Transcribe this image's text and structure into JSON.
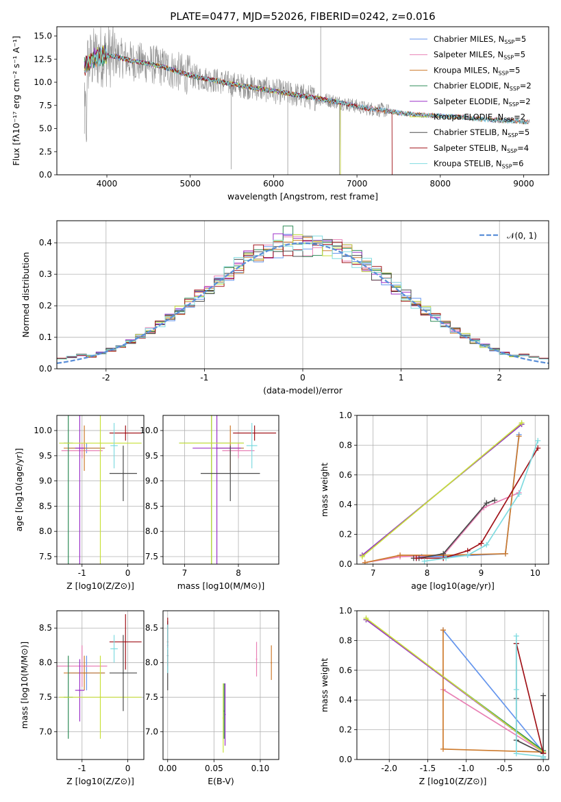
{
  "figure": {
    "title": "PLATE=0477, MJD=52026, FIBERID=0242, z=0.016"
  },
  "colors": {
    "Chabrier MILES": "#6495ed",
    "Salpeter MILES": "#e87fb4",
    "Kroupa MILES": "#cd7a2c",
    "Chabrier ELODIE": "#2e8b57",
    "Salpeter ELODIE": "#9b30c8",
    "Kroupa ELODIE": "#c8e03a",
    "Chabrier STELIB": "#4a4a4a",
    "Salpeter STELIB": "#a01218",
    "Kroupa STELIB": "#7fdbe0",
    "data": "#888888",
    "grid": "#b0b0b0",
    "gauss": "#5b8fd8"
  },
  "chart_data": [
    {
      "id": "spectrum",
      "type": "line",
      "title": "PLATE=0477, MJD=52026, FIBERID=0242, z=0.016",
      "xlabel": "wavelength [Angstrom, rest frame]",
      "ylabel": "Flux [fλ10⁻¹⁷ erg cm⁻² s⁻¹ A⁻¹]",
      "xlim": [
        3400,
        9300
      ],
      "ylim": [
        0,
        16
      ],
      "xticks": [
        4000,
        5000,
        6000,
        7000,
        8000,
        9000
      ],
      "yticks": [
        0.0,
        2.5,
        5.0,
        7.5,
        10.0,
        12.5,
        15.0
      ],
      "legend": "top-right",
      "legend_labels": [
        "Chabrier MILES, N_SSP=5",
        "Salpeter MILES, N_SSP=5",
        "Kroupa MILES, N_SSP=5",
        "Chabrier ELODIE, N_SSP=2",
        "Salpeter ELODIE, N_SSP=2",
        "Kroupa ELODIE, N_SSP=2",
        "Chabrier STELIB, N_SSP=5",
        "Salpeter STELIB, N_SSP=4",
        "Kroupa STELIB, N_SSP=6"
      ],
      "continuum": {
        "x": [
          3750,
          3850,
          3950,
          4100,
          4300,
          4500,
          4700,
          4900,
          5100,
          5300,
          5500,
          5700,
          5900,
          6100,
          6300,
          6500,
          6700,
          6900,
          7100,
          7300,
          7500,
          7700,
          7900,
          8100,
          8300,
          8500,
          8700,
          8900,
          9050
        ],
        "y": [
          11.8,
          12.6,
          12.9,
          12.8,
          12.3,
          12.0,
          11.6,
          11.0,
          10.5,
          10.2,
          9.8,
          9.5,
          9.2,
          8.9,
          8.6,
          8.3,
          8.0,
          7.6,
          7.2,
          7.0,
          6.7,
          6.5,
          6.4,
          6.3,
          6.2,
          6.0,
          5.9,
          5.8,
          5.7
        ]
      }
    },
    {
      "id": "residuals",
      "type": "line",
      "xlabel": "(data-model)/error",
      "ylabel": "Normed distribution",
      "xlim": [
        -2.5,
        2.5
      ],
      "ylim": [
        0,
        0.47
      ],
      "xticks": [
        -2,
        -1,
        0,
        1,
        2
      ],
      "yticks": [
        0.0,
        0.1,
        0.2,
        0.3,
        0.4
      ],
      "legend": "top-right",
      "gauss_label": "𝒩(0, 1)",
      "bin_width": 0.1
    },
    {
      "id": "age-vs-Z",
      "type": "scatter",
      "xlabel": "Z [log10(Z/Z⊙)]",
      "ylabel": "age  [log10(age/yr)]",
      "xlim": [
        -1.55,
        0.35
      ],
      "ylim": [
        7.35,
        10.3
      ],
      "xticks": [
        -1,
        0
      ],
      "yticks": [
        7.5,
        8.0,
        8.5,
        9.0,
        9.5,
        10.0
      ],
      "points": [
        {
          "model": "Chabrier MILES",
          "x": -0.9,
          "xerr": 0.4,
          "y": 9.65,
          "yerr": 0.1
        },
        {
          "model": "Salpeter MILES",
          "x": -1.0,
          "xerr": 0.45,
          "y": 9.6,
          "yerr": 0.15
        },
        {
          "model": "Kroupa MILES",
          "x": -0.95,
          "xerr": 0.45,
          "y": 9.65,
          "yerr": 0.45
        },
        {
          "model": "Chabrier ELODIE",
          "x": -1.3,
          "xerr": 0.1,
          "y": 9.75,
          "yerr": 2.4
        },
        {
          "model": "Salpeter ELODIE",
          "x": -1.05,
          "xerr": 0.1,
          "y": 9.65,
          "yerr": 2.3
        },
        {
          "model": "Kroupa ELODIE",
          "x": -0.6,
          "xerr": 0.9,
          "y": 9.75,
          "yerr": 2.4
        },
        {
          "model": "Chabrier STELIB",
          "x": -0.1,
          "xerr": 0.3,
          "y": 9.15,
          "yerr": 0.55
        },
        {
          "model": "Salpeter STELIB",
          "x": -0.05,
          "xerr": 0.35,
          "y": 9.95,
          "yerr": 0.15
        },
        {
          "model": "Kroupa STELIB",
          "x": -0.3,
          "xerr": 0.08,
          "y": 9.7,
          "yerr": 0.45
        }
      ]
    },
    {
      "id": "age-vs-mass",
      "type": "scatter",
      "xlabel": "mass [log10(M/M⊙)]",
      "xlim": [
        6.6,
        8.75
      ],
      "ylim": [
        7.35,
        10.3
      ],
      "xticks": [
        7,
        8
      ],
      "yticks": [
        7.5,
        8.0,
        8.5,
        9.0,
        9.5,
        10.0
      ],
      "points": [
        {
          "model": "Chabrier MILES",
          "x": 7.85,
          "xerr": 0.25,
          "y": 9.65,
          "yerr": 0.1
        },
        {
          "model": "Salpeter MILES",
          "x": 8.0,
          "xerr": 0.3,
          "y": 9.6,
          "yerr": 0.15
        },
        {
          "model": "Kroupa MILES",
          "x": 7.85,
          "xerr": 0.25,
          "y": 9.65,
          "yerr": 0.45
        },
        {
          "model": "Chabrier ELODIE",
          "x": 7.5,
          "xerr": 0.6,
          "y": 9.75,
          "yerr": 2.4
        },
        {
          "model": "Salpeter ELODIE",
          "x": 7.6,
          "xerr": 0.45,
          "y": 9.65,
          "yerr": 2.3
        },
        {
          "model": "Kroupa ELODIE",
          "x": 7.5,
          "xerr": 0.6,
          "y": 9.75,
          "yerr": 2.4
        },
        {
          "model": "Chabrier STELIB",
          "x": 7.85,
          "xerr": 0.55,
          "y": 9.15,
          "yerr": 0.55
        },
        {
          "model": "Salpeter STELIB",
          "x": 8.3,
          "xerr": 0.4,
          "y": 9.95,
          "yerr": 0.15
        },
        {
          "model": "Kroupa STELIB",
          "x": 8.25,
          "xerr": 0.1,
          "y": 9.7,
          "yerr": 0.45
        }
      ]
    },
    {
      "id": "weight-vs-age",
      "type": "line",
      "xlabel": "age  [log10(age/yr)]",
      "ylabel": "mass weight",
      "xlim": [
        6.7,
        10.25
      ],
      "ylim": [
        0,
        1.0
      ],
      "xticks": [
        7,
        8,
        9,
        10
      ],
      "yticks": [
        0.0,
        0.2,
        0.4,
        0.6,
        0.8,
        1.0
      ],
      "series": [
        {
          "model": "Chabrier MILES",
          "x": [
            7.8,
            7.9,
            8.3,
            9.45,
            9.7
          ],
          "y": [
            0.04,
            0.05,
            0.05,
            0.07,
            0.87
          ]
        },
        {
          "model": "Salpeter MILES",
          "x": [
            6.85,
            7.5,
            8.3,
            9.05,
            9.7
          ],
          "y": [
            0.01,
            0.05,
            0.06,
            0.38,
            0.48
          ]
        },
        {
          "model": "Kroupa MILES",
          "x": [
            6.85,
            7.5,
            8.3,
            9.45,
            9.7
          ],
          "y": [
            0.01,
            0.06,
            0.06,
            0.07,
            0.86
          ]
        },
        {
          "model": "Chabrier ELODIE",
          "x": [
            6.8,
            9.75
          ],
          "y": [
            0.06,
            0.94
          ]
        },
        {
          "model": "Salpeter ELODIE",
          "x": [
            6.8,
            9.75
          ],
          "y": [
            0.06,
            0.94
          ]
        },
        {
          "model": "Kroupa ELODIE",
          "x": [
            6.8,
            9.75
          ],
          "y": [
            0.05,
            0.95
          ]
        },
        {
          "model": "Chabrier STELIB",
          "x": [
            7.75,
            7.85,
            8.3,
            9.1,
            9.25
          ],
          "y": [
            0.04,
            0.04,
            0.07,
            0.41,
            0.43
          ]
        },
        {
          "model": "Salpeter STELIB",
          "x": [
            7.8,
            8.3,
            8.75,
            9.0,
            10.05
          ],
          "y": [
            0.04,
            0.04,
            0.09,
            0.14,
            0.78
          ]
        },
        {
          "model": "Kroupa STELIB",
          "x": [
            7.95,
            8.35,
            8.75,
            9.1,
            9.7,
            10.05
          ],
          "y": [
            0.02,
            0.04,
            0.06,
            0.13,
            0.47,
            0.83
          ]
        }
      ]
    },
    {
      "id": "mass-vs-Z",
      "type": "scatter",
      "xlabel": "Z [log10(Z/Z⊙)]",
      "ylabel": "mass [log10(M/M⊙)]",
      "xlim": [
        -1.55,
        0.35
      ],
      "ylim": [
        6.6,
        8.75
      ],
      "xticks": [
        -1,
        0
      ],
      "yticks": [
        7.0,
        7.5,
        8.0,
        8.5
      ],
      "points": [
        {
          "model": "Chabrier MILES",
          "x": -0.9,
          "xerr": 0.4,
          "y": 7.85,
          "yerr": 0.25
        },
        {
          "model": "Salpeter MILES",
          "x": -1.0,
          "xerr": 0.55,
          "y": 7.95,
          "yerr": 0.3
        },
        {
          "model": "Kroupa MILES",
          "x": -0.95,
          "xerr": 0.45,
          "y": 7.85,
          "yerr": 0.25
        },
        {
          "model": "Chabrier ELODIE",
          "x": -1.3,
          "xerr": 0.1,
          "y": 7.5,
          "yerr": 0.6
        },
        {
          "model": "Salpeter ELODIE",
          "x": -1.05,
          "xerr": 0.1,
          "y": 7.6,
          "yerr": 0.45
        },
        {
          "model": "Kroupa ELODIE",
          "x": -0.6,
          "xerr": 0.9,
          "y": 7.5,
          "yerr": 0.6
        },
        {
          "model": "Chabrier STELIB",
          "x": -0.1,
          "xerr": 0.3,
          "y": 7.85,
          "yerr": 0.55
        },
        {
          "model": "Salpeter STELIB",
          "x": -0.05,
          "xerr": 0.35,
          "y": 8.3,
          "yerr": 0.4
        },
        {
          "model": "Kroupa STELIB",
          "x": -0.3,
          "xerr": 0.08,
          "y": 8.2,
          "yerr": 0.2
        }
      ]
    },
    {
      "id": "mass-vs-EBV",
      "type": "scatter",
      "xlabel": "E(B-V)",
      "xlim": [
        -0.005,
        0.12
      ],
      "ylim": [
        6.6,
        8.75
      ],
      "xticks": [
        0.0,
        0.05,
        0.1
      ],
      "yticks": [
        7.0,
        7.5,
        8.0,
        8.5
      ],
      "points": [
        {
          "model": "Chabrier MILES",
          "x": 0.0,
          "y": 8.25,
          "yerr": 0.35
        },
        {
          "model": "Salpeter MILES",
          "x": 0.096,
          "y": 8.05,
          "yerr": 0.25
        },
        {
          "model": "Kroupa MILES",
          "x": 0.112,
          "y": 8.0,
          "yerr": 0.25
        },
        {
          "model": "Chabrier ELODIE",
          "x": 0.061,
          "y": 7.3,
          "yerr": 0.4
        },
        {
          "model": "Salpeter ELODIE",
          "x": 0.062,
          "y": 7.25,
          "yerr": 0.45
        },
        {
          "model": "Kroupa ELODIE",
          "x": 0.06,
          "y": 7.2,
          "yerr": 0.5
        },
        {
          "model": "Chabrier STELIB",
          "x": 0.0,
          "y": 8.1,
          "yerr": 0.5
        },
        {
          "model": "Salpeter STELIB",
          "x": 0.0,
          "y": 8.3,
          "yerr": 0.35
        },
        {
          "model": "Kroupa STELIB",
          "x": 0.0,
          "y": 8.2,
          "yerr": 0.35
        }
      ]
    },
    {
      "id": "weight-vs-Z",
      "type": "line",
      "xlabel": "Z [log10(Z/Z⊙)]",
      "ylabel": "mass weight",
      "xlim": [
        -2.42,
        0.07
      ],
      "ylim": [
        0,
        1.0
      ],
      "xticks": [
        -2.0,
        -1.5,
        -1.0,
        -0.5,
        0.0
      ],
      "yticks": [
        0.0,
        0.2,
        0.4,
        0.6,
        0.8,
        1.0
      ],
      "series": [
        {
          "model": "Chabrier MILES",
          "x": [
            -1.3,
            0.0,
            0.0
          ],
          "y": [
            0.87,
            0.05,
            0.04
          ]
        },
        {
          "model": "Salpeter MILES",
          "x": [
            -1.3,
            0.0,
            0.0
          ],
          "y": [
            0.47,
            0.05,
            0.04
          ]
        },
        {
          "model": "Kroupa MILES",
          "x": [
            -1.3,
            -1.3,
            0.0,
            0.0
          ],
          "y": [
            0.87,
            0.07,
            0.05,
            0.04
          ]
        },
        {
          "model": "Chabrier ELODIE",
          "x": [
            -2.3,
            0.0
          ],
          "y": [
            0.94,
            0.06
          ]
        },
        {
          "model": "Salpeter ELODIE",
          "x": [
            -2.3,
            0.0
          ],
          "y": [
            0.94,
            0.05
          ]
        },
        {
          "model": "Kroupa ELODIE",
          "x": [
            -2.3,
            0.0
          ],
          "y": [
            0.95,
            0.05
          ]
        },
        {
          "model": "Chabrier STELIB",
          "x": [
            -0.35,
            -0.35,
            -0.35,
            0.0,
            0.0
          ],
          "y": [
            0.78,
            0.41,
            0.13,
            0.04,
            0.43
          ]
        },
        {
          "model": "Salpeter STELIB",
          "x": [
            -0.35,
            0.0,
            0.0
          ],
          "y": [
            0.78,
            0.04,
            0.02
          ]
        },
        {
          "model": "Kroupa STELIB",
          "x": [
            -0.35,
            -0.35,
            -0.35,
            0.0,
            0.0
          ],
          "y": [
            0.83,
            0.47,
            0.04,
            0.02,
            0.01
          ]
        }
      ]
    }
  ]
}
